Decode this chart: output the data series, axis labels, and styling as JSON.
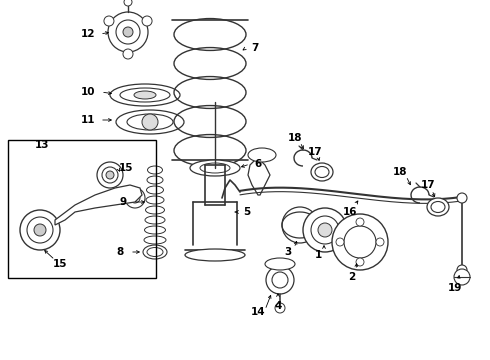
{
  "bg_color": "#ffffff",
  "fig_width": 4.9,
  "fig_height": 3.6,
  "dpi": 100,
  "line_color": "#333333",
  "label_color": "#000000",
  "label_fontsize": 7.5,
  "label_fontweight": "bold"
}
